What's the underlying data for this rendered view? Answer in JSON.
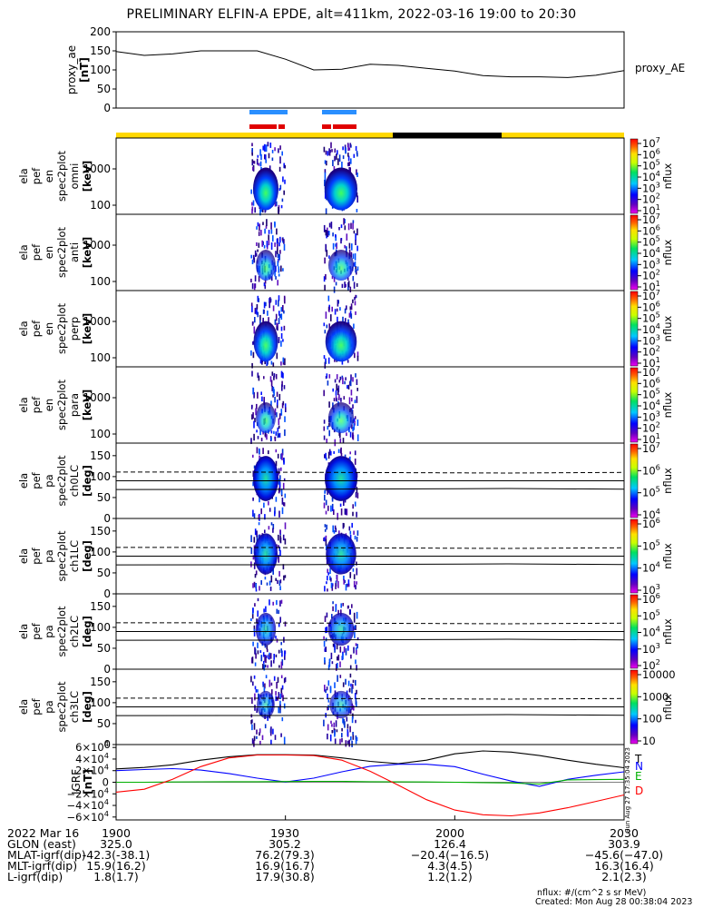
{
  "title": "PRELIMINARY ELFIN-A EPDE, alt=411km, 2022-03-16 19:00 to 20:30",
  "chart_data": [
    {
      "type": "line",
      "panel": "proxy_ae",
      "ylabel": [
        "proxy_ae",
        "[nT]"
      ],
      "legend": "proxy_AE",
      "ylim": [
        0,
        200
      ],
      "yticks": [
        "200",
        "150",
        "100",
        "50",
        "0"
      ],
      "x_minutes": [
        0,
        5,
        10,
        15,
        20,
        25,
        30,
        35,
        40,
        45,
        50,
        55,
        60,
        65,
        70,
        75,
        80,
        85,
        90
      ],
      "values": [
        148,
        138,
        142,
        150,
        150,
        150,
        128,
        100,
        102,
        115,
        112,
        104,
        97,
        85,
        82,
        82,
        80,
        86,
        98
      ]
    },
    {
      "type": "heatmap",
      "panel": "en_spec2plot_omni",
      "ylabel": [
        "ela",
        "pef",
        "en",
        "spec2plot",
        "omni",
        "[keV]"
      ],
      "yscale": "log",
      "yticks": [
        "1000",
        "100"
      ],
      "zlabel": "nflux",
      "zticks": [
        "10^7",
        "10^6",
        "10^5",
        "10^4",
        "10^3",
        "10^2",
        "10^1"
      ]
    },
    {
      "type": "heatmap",
      "panel": "en_spec2plot_anti",
      "ylabel": [
        "ela",
        "pef",
        "en",
        "spec2plot",
        "anti",
        "[keV]"
      ],
      "yscale": "log",
      "yticks": [
        "1000",
        "100"
      ],
      "zlabel": "nflux",
      "zticks": [
        "10^7",
        "10^6",
        "10^5",
        "10^4",
        "10^3",
        "10^2",
        "10^1"
      ]
    },
    {
      "type": "heatmap",
      "panel": "en_spec2plot_perp",
      "ylabel": [
        "ela",
        "pef",
        "en",
        "spec2plot",
        "perp",
        "[keV]"
      ],
      "yscale": "log",
      "yticks": [
        "1000",
        "100"
      ],
      "zlabel": "nflux",
      "zticks": [
        "10^7",
        "10^6",
        "10^5",
        "10^4",
        "10^3",
        "10^2",
        "10^1"
      ]
    },
    {
      "type": "heatmap",
      "panel": "en_spec2plot_para",
      "ylabel": [
        "ela",
        "pef",
        "en",
        "spec2plot",
        "para",
        "[keV]"
      ],
      "yscale": "log",
      "yticks": [
        "1000",
        "100"
      ],
      "zlabel": "nflux",
      "zticks": [
        "10^7",
        "10^6",
        "10^5",
        "10^4",
        "10^3",
        "10^2",
        "10^1"
      ]
    },
    {
      "type": "heatmap",
      "panel": "pa_spec2plot_ch0LC",
      "ylabel": [
        "ela",
        "pef",
        "pa",
        "spec2plot",
        "ch0LC",
        "[deg]"
      ],
      "ylim": [
        0,
        180
      ],
      "yticks": [
        "150",
        "100",
        "50",
        "0"
      ],
      "zlabel": "nflux",
      "zticks": [
        "10^7",
        "10^6",
        "10^5",
        "10^4"
      ]
    },
    {
      "type": "heatmap",
      "panel": "pa_spec2plot_ch1LC",
      "ylabel": [
        "ela",
        "pef",
        "pa",
        "spec2plot",
        "ch1LC",
        "[deg]"
      ],
      "ylim": [
        0,
        180
      ],
      "yticks": [
        "150",
        "100",
        "50",
        "0"
      ],
      "zlabel": "nflux",
      "zticks": [
        "10^6",
        "10^5",
        "10^4",
        "10^3"
      ]
    },
    {
      "type": "heatmap",
      "panel": "pa_spec2plot_ch2LC",
      "ylabel": [
        "ela",
        "pef",
        "pa",
        "spec2plot",
        "ch2LC",
        "[deg]"
      ],
      "ylim": [
        0,
        180
      ],
      "yticks": [
        "150",
        "100",
        "50",
        "0"
      ],
      "zlabel": "nflux",
      "zticks": [
        "10^6",
        "10^5",
        "10^4",
        "10^3",
        "10^2"
      ]
    },
    {
      "type": "heatmap",
      "panel": "pa_spec2plot_ch3LC",
      "ylabel": [
        "ela",
        "pef",
        "pa",
        "spec2plot",
        "ch3LC",
        "[deg]"
      ],
      "ylim": [
        0,
        180
      ],
      "yticks": [
        "150",
        "100",
        "50",
        "0"
      ],
      "zlabel": "nflux",
      "zticks": [
        "10000",
        "1000",
        "100",
        "10"
      ]
    },
    {
      "type": "line",
      "panel": "IGRF",
      "ylabel": [
        "IGRF",
        "[nT]"
      ],
      "ylim": [
        -65000,
        65000
      ],
      "yticks": [
        "6×10^4",
        "4×10^4",
        "2×10^4",
        "0",
        "−2×10^4",
        "−4×10^4",
        "−6×10^4"
      ],
      "x_minutes": [
        0,
        5,
        10,
        15,
        20,
        25,
        30,
        35,
        40,
        45,
        50,
        55,
        60,
        65,
        70,
        75,
        80,
        85,
        90
      ],
      "series": [
        {
          "name": "T",
          "color": "#000000",
          "values": [
            23000,
            25500,
            30000,
            38000,
            44000,
            47500,
            47500,
            47000,
            42000,
            36000,
            32000,
            38000,
            49000,
            54000,
            52000,
            46000,
            38000,
            31000,
            25000
          ]
        },
        {
          "name": "N",
          "color": "#0000ff",
          "values": [
            20000,
            22000,
            23500,
            21000,
            15000,
            7000,
            500,
            7000,
            18000,
            27500,
            31000,
            31000,
            27000,
            14000,
            2000,
            -7000,
            5000,
            12000,
            18000
          ]
        },
        {
          "name": "E",
          "color": "#00b000",
          "values": [
            0,
            0,
            500,
            800,
            1000,
            1000,
            1200,
            1500,
            1500,
            1000,
            600,
            400,
            0,
            -600,
            -1200,
            -3000,
            4000,
            4500,
            5000
          ]
        },
        {
          "name": "D",
          "color": "#ff0000",
          "values": [
            -17000,
            -12000,
            5000,
            27000,
            42000,
            47000,
            47000,
            46000,
            38000,
            19000,
            -5000,
            -30000,
            -48000,
            -56000,
            -58000,
            -53000,
            -44000,
            -33000,
            -22000
          ]
        }
      ]
    }
  ],
  "time_ticks": [
    "1900",
    "1930",
    "2000",
    "2030"
  ],
  "ephem": {
    "rows": [
      {
        "label": "2022 Mar 16",
        "v": [
          "1900",
          "1930",
          "2000",
          "2030"
        ]
      },
      {
        "label": "GLON (east)",
        "v": [
          "325.0",
          "305.2",
          "126.4",
          "303.9"
        ]
      },
      {
        "label": "MLAT-igrf(dip)",
        "v": [
          "-42.3(-38.1)",
          "76.2(79.3)",
          "−20.4(−16.5)",
          "−45.6(−47.0)"
        ]
      },
      {
        "label": "MLT-igrf(dip)",
        "v": [
          "15.9(16.2)",
          "16.9(16.7)",
          "4.3(4.5)",
          "16.3(16.4)"
        ]
      },
      {
        "label": "L-igrf(dip)",
        "v": [
          "1.8(1.7)",
          "17.9(30.8)",
          "1.2(1.2)",
          "2.1(2.3)"
        ]
      }
    ]
  },
  "units_note": "nflux: #/(cm^2 s sr MeV)",
  "created": "Created: Mon Aug 28 00:38:04 2023",
  "side_stamp": "Sun Aug 27 17:35:04 2023",
  "colors": {
    "science_zone": "#2a8fff",
    "orbit_marker": "#e00000",
    "sunlit": "#ffd800",
    "eclipse": "#000000"
  }
}
